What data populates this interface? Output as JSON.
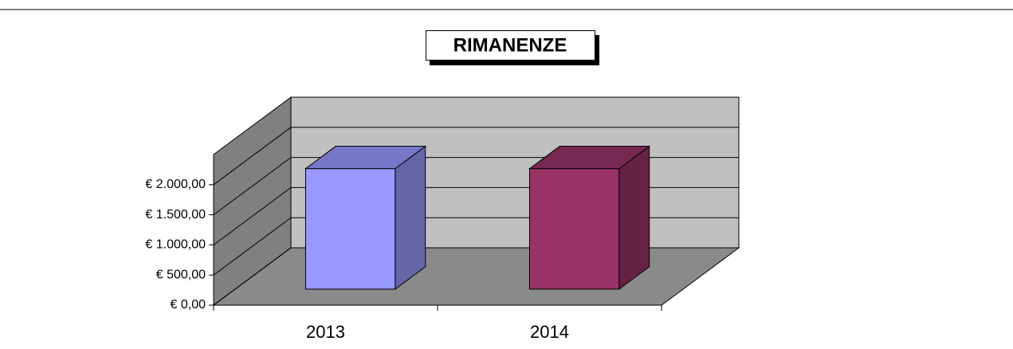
{
  "chart_data": {
    "type": "bar3d",
    "title": "RIMANENZE",
    "categories": [
      "2013",
      "2014"
    ],
    "series": [
      {
        "name": "RIMANENZE",
        "values": [
          2000,
          2000
        ],
        "colors": [
          "#9999ff",
          "#993366"
        ]
      }
    ],
    "ylim": [
      0,
      2500
    ],
    "yticks": [
      {
        "value": 0,
        "label": "€ 0,00"
      },
      {
        "value": 500,
        "label": "€ 500,00"
      },
      {
        "value": 1000,
        "label": "€ 1.000,00"
      },
      {
        "value": 1500,
        "label": "€ 1.500,00"
      },
      {
        "value": 2000,
        "label": "€ 2.000,00"
      }
    ],
    "grid": true
  }
}
